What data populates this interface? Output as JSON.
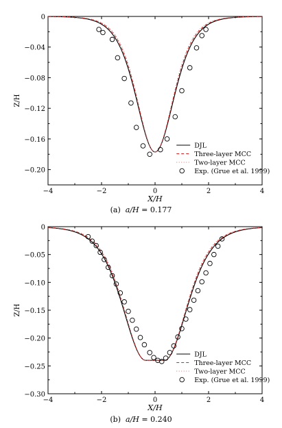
{
  "chart_data": [
    {
      "type": "line",
      "caption_prefix": "(a)",
      "caption_var": "a/H",
      "caption_value": "= 0.177",
      "xlabel": "X/H",
      "ylabel": "Z/H",
      "xlim": [
        -4,
        4
      ],
      "ylim": [
        -0.22,
        0
      ],
      "xticks": [
        -4,
        -2,
        0,
        2,
        4
      ],
      "yticks": [
        0,
        -0.04,
        -0.08,
        -0.12,
        -0.16,
        -0.2
      ],
      "ytick_labels": [
        "0",
        "−0.04",
        "−0.08",
        "−0.12",
        "−0.16",
        "−0.20"
      ],
      "xtick_labels": [
        "−4",
        "−2",
        "0",
        "2",
        "4"
      ],
      "legend_position": "lower-right",
      "series": [
        {
          "name": "DJL",
          "style": "solid",
          "color": "#000000",
          "amplitude": 0.177,
          "width": 0.95
        },
        {
          "name": "Three-layer MCC",
          "style": "dashed",
          "color": "#d62020",
          "amplitude": 0.177,
          "width": 0.92
        },
        {
          "name": "Two-layer MCC",
          "style": "dotted",
          "color": "#d67070",
          "amplitude": 0.177,
          "width": 0.9
        },
        {
          "name": "Exp. (Grue et al. 1999)",
          "style": "markers",
          "color": "#000000",
          "x": [
            -2.1,
            -1.95,
            -1.6,
            -1.4,
            -1.15,
            -0.9,
            -0.7,
            -0.45,
            -0.2,
            0.2,
            0.45,
            0.75,
            1.0,
            1.3,
            1.55,
            1.75,
            1.9
          ],
          "y": [
            -0.017,
            -0.021,
            -0.03,
            -0.054,
            -0.081,
            -0.113,
            -0.145,
            -0.169,
            -0.18,
            -0.174,
            -0.16,
            -0.131,
            -0.097,
            -0.067,
            -0.041,
            -0.025,
            -0.017
          ]
        }
      ]
    },
    {
      "type": "line",
      "caption_prefix": "(b)",
      "caption_var": "a/H",
      "caption_value": "= 0.240",
      "xlabel": "X/H",
      "ylabel": "Z/H",
      "xlim": [
        -4,
        4
      ],
      "ylim": [
        -0.3,
        0
      ],
      "xticks": [
        -4,
        -2,
        0,
        2,
        4
      ],
      "yticks": [
        0,
        -0.05,
        -0.1,
        -0.15,
        -0.2,
        -0.25,
        -0.3
      ],
      "ytick_labels": [
        "0",
        "−0.05",
        "−0.10",
        "−0.15",
        "−0.20",
        "−0.25",
        "−0.30"
      ],
      "xtick_labels": [
        "−4",
        "−2",
        "0",
        "2",
        "4"
      ],
      "legend_position": "lower-right",
      "series": [
        {
          "name": "DJL",
          "style": "solid",
          "color": "#000000",
          "amplitude": 0.24,
          "width": 1.15,
          "flat": 0.35
        },
        {
          "name": "Three-layer MCC",
          "style": "dashed",
          "color": "#d62020",
          "amplitude": 0.24,
          "width": 1.12,
          "flat": 0.35
        },
        {
          "name": "Two-layer MCC",
          "style": "dotted",
          "color": "#d67070",
          "amplitude": 0.24,
          "width": 1.1,
          "flat": 0.35
        },
        {
          "name": "Exp. (Grue et al. 1999)",
          "style": "markers",
          "color": "#000000",
          "x": [
            -2.5,
            -2.35,
            -2.2,
            -2.05,
            -1.9,
            -1.75,
            -1.6,
            -1.45,
            -1.3,
            -1.15,
            -1.0,
            -0.85,
            -0.7,
            -0.55,
            -0.4,
            -0.2,
            -0.05,
            0.1,
            0.25,
            0.4,
            0.55,
            0.7,
            0.85,
            1.0,
            1.15,
            1.3,
            1.45,
            1.6,
            1.75,
            1.9,
            2.05,
            2.2,
            2.35,
            2.5
          ],
          "y": [
            -0.018,
            -0.026,
            -0.034,
            -0.046,
            -0.059,
            -0.073,
            -0.088,
            -0.103,
            -0.119,
            -0.135,
            -0.152,
            -0.168,
            -0.184,
            -0.199,
            -0.212,
            -0.226,
            -0.235,
            -0.24,
            -0.242,
            -0.236,
            -0.226,
            -0.214,
            -0.198,
            -0.183,
            -0.166,
            -0.149,
            -0.132,
            -0.115,
            -0.099,
            -0.083,
            -0.066,
            -0.05,
            -0.035,
            -0.022
          ]
        }
      ]
    }
  ]
}
